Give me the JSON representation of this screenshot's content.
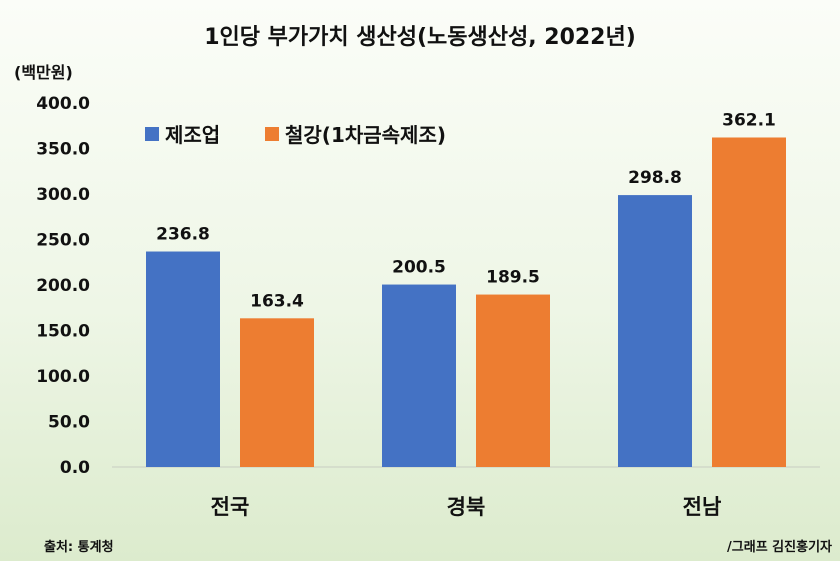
{
  "chart_data": {
    "type": "bar",
    "title": "1인당 부가가치 생산성(노동생산성, 2022년)",
    "ylabel": "(백만원)",
    "categories": [
      "전국",
      "경북",
      "전남"
    ],
    "series": [
      {
        "name": "제조업",
        "color": "#4472c4",
        "values": [
          236.8,
          200.5,
          298.8
        ],
        "labels": [
          "236.8",
          "200.5",
          "298.8"
        ]
      },
      {
        "name": "철강(1차금속제조)",
        "color": "#ed7d31",
        "values": [
          163.4,
          189.5,
          362.1
        ],
        "labels": [
          "163.4",
          "189.5",
          "362.1"
        ]
      }
    ],
    "ylim": [
      0,
      400
    ],
    "yticks": [
      "0.0",
      "50.0",
      "100.0",
      "150.0",
      "200.0",
      "250.0",
      "300.0",
      "350.0",
      "400.0"
    ],
    "legend": "top-left"
  },
  "footer": {
    "source": "출처: 통계청",
    "credit": "/그래프 김진홍기자"
  }
}
